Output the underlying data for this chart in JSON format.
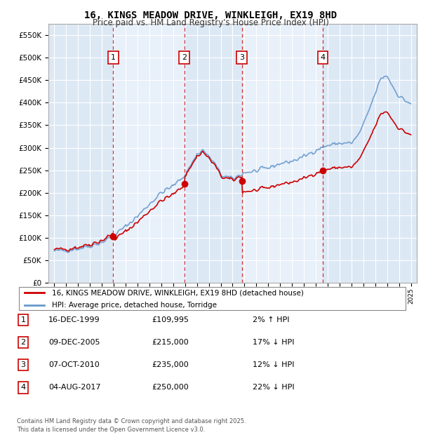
{
  "title": "16, KINGS MEADOW DRIVE, WINKLEIGH, EX19 8HD",
  "subtitle": "Price paid vs. HM Land Registry's House Price Index (HPI)",
  "legend_label_red": "16, KINGS MEADOW DRIVE, WINKLEIGH, EX19 8HD (detached house)",
  "legend_label_blue": "HPI: Average price, detached house, Torridge",
  "footer": "Contains HM Land Registry data © Crown copyright and database right 2025.\nThis data is licensed under the Open Government Licence v3.0.",
  "transactions": [
    {
      "num": 1,
      "date": "16-DEC-1999",
      "price": 109995,
      "hpi_diff": "2% ↑ HPI",
      "x": 1999.96
    },
    {
      "num": 2,
      "date": "09-DEC-2005",
      "price": 215000,
      "hpi_diff": "17% ↓ HPI",
      "x": 2005.94
    },
    {
      "num": 3,
      "date": "07-OCT-2010",
      "price": 235000,
      "hpi_diff": "12% ↓ HPI",
      "x": 2010.77
    },
    {
      "num": 4,
      "date": "04-AUG-2017",
      "price": 250000,
      "hpi_diff": "22% ↓ HPI",
      "x": 2017.59
    }
  ],
  "ylim_max": 575000,
  "xlim_left": 1994.5,
  "xlim_right": 2025.5,
  "ytick_values": [
    0,
    50000,
    100000,
    150000,
    200000,
    250000,
    300000,
    350000,
    400000,
    450000,
    500000,
    550000
  ],
  "ytick_labels": [
    "£0",
    "£50K",
    "£100K",
    "£150K",
    "£200K",
    "£250K",
    "£300K",
    "£350K",
    "£400K",
    "£450K",
    "£500K",
    "£550K"
  ],
  "plot_bg_color": "#ddeeff",
  "red_color": "#cc0000",
  "blue_color": "#6699cc",
  "dashed_color": "#cc0000",
  "grid_color": "#ffffff",
  "transaction_box_color": "#cc0000",
  "stripe_color": "#ddeeff",
  "bg_color": "#ffffff"
}
